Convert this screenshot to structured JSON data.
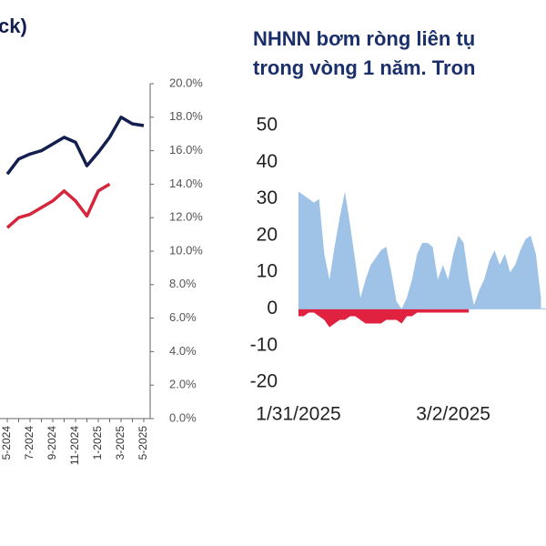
{
  "chart_data": [
    {
      "type": "line",
      "title": "ck)",
      "categories": [
        "5-2024",
        null,
        "7-2024",
        null,
        "9-2024",
        null,
        "11-2024",
        null,
        "1-2025",
        null,
        "3-2025",
        null,
        "5-2025"
      ],
      "series": [
        {
          "color": "#13204f",
          "values": [
            14.6,
            15.5,
            15.8,
            16.0,
            16.4,
            16.8,
            16.5,
            15.1,
            15.9,
            16.8,
            18.0,
            17.6,
            17.5
          ]
        },
        {
          "color": "#d6263d",
          "values": [
            11.4,
            12.0,
            12.2,
            12.6,
            13.0,
            13.6,
            13.0,
            12.1,
            13.6,
            14.0,
            null,
            null,
            null
          ]
        }
      ],
      "ylim": [
        0,
        20
      ],
      "yticks": [
        {
          "value": 0,
          "label": "0.0%"
        },
        {
          "value": 2,
          "label": "2.0%"
        },
        {
          "value": 4,
          "label": "4.0%"
        },
        {
          "value": 6,
          "label": "6.0%"
        },
        {
          "value": 8,
          "label": "8.0%"
        },
        {
          "value": 10,
          "label": "10.0%"
        },
        {
          "value": 12,
          "label": "12.0%"
        },
        {
          "value": 14,
          "label": "14.0%"
        },
        {
          "value": 16,
          "label": "16.0%"
        },
        {
          "value": 18,
          "label": "18.0%"
        },
        {
          "value": 20,
          "label": "20.0%"
        }
      ]
    },
    {
      "type": "area",
      "title": [
        "NHNN bơm ròng liên tụ",
        "trong vòng 1 năm. Tron"
      ],
      "categories": [
        "1/31/2025",
        null,
        null,
        null,
        null,
        null,
        null,
        null,
        null,
        null,
        null,
        null,
        null,
        null,
        null,
        null,
        null,
        null,
        null,
        null,
        null,
        null,
        null,
        null,
        null,
        null,
        null,
        null,
        null,
        null,
        "3/2/2025",
        null,
        null,
        null,
        null,
        null,
        null,
        null,
        null,
        null,
        null,
        null,
        null,
        null,
        null,
        null,
        null,
        null
      ],
      "series": [
        {
          "color": "#9fc3e7",
          "values": [
            32,
            31,
            30,
            29,
            30,
            15,
            8,
            17,
            25,
            32,
            23,
            13,
            3,
            8,
            12,
            14,
            16,
            17,
            10,
            2,
            0,
            3,
            8,
            15,
            18,
            18,
            17,
            8,
            12,
            8,
            15,
            20,
            18,
            8,
            1,
            5,
            8,
            13,
            16,
            12,
            15,
            10,
            12,
            16,
            19,
            20,
            15,
            3
          ]
        },
        {
          "color": "#e0213f",
          "values": [
            -2,
            -2,
            -1,
            -1,
            -2,
            -3,
            -5,
            -4,
            -3,
            -3,
            -2,
            -2,
            -3,
            -4,
            -4,
            -4,
            -4,
            -3,
            -3,
            -3,
            -4,
            -2,
            -2,
            -1,
            -1,
            -1,
            -1,
            -1,
            -1,
            -1,
            -1,
            -1,
            -1,
            -1,
            null,
            null,
            null,
            null,
            null,
            null,
            null,
            null,
            null,
            null,
            null,
            null,
            null,
            null
          ]
        }
      ],
      "ylim": [
        -20,
        50
      ],
      "yticks": [
        -20,
        -10,
        0,
        10,
        20,
        30,
        40,
        50
      ]
    }
  ]
}
